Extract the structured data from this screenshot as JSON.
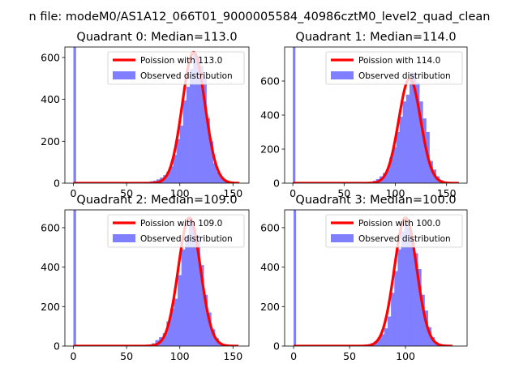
{
  "chart_data": {
    "suptitle": "n file: modeM0/AS1A12_066T01_9000005584_40986cztM0_level2_quad_clean",
    "type": "histogram+line",
    "panels": [
      {
        "title": "Quadrant 0: Median=113.0",
        "xlim": [
          -8,
          165
        ],
        "ylim": [
          0,
          650
        ],
        "xticks": [
          0,
          50,
          100,
          150
        ],
        "yticks": [
          0,
          200,
          400,
          600
        ],
        "legend": {
          "line_label": "Poission with 113.0",
          "bar_label": "Observed distribution",
          "position": "top-right"
        },
        "hist": {
          "zero_bin": {
            "left": 0,
            "width": 2.5,
            "count": 650
          },
          "bin_width": 3.125,
          "bins": [
            [
              62.5,
              3
            ],
            [
              65.6,
              4
            ],
            [
              68.7,
              6
            ],
            [
              71.9,
              9
            ],
            [
              75.0,
              12
            ],
            [
              78.1,
              18
            ],
            [
              81.2,
              26
            ],
            [
              84.4,
              38
            ],
            [
              87.5,
              55
            ],
            [
              90.6,
              80
            ],
            [
              93.7,
              135
            ],
            [
              96.9,
              210
            ],
            [
              100.0,
              275
            ],
            [
              103.1,
              395
            ],
            [
              106.2,
              460
            ],
            [
              109.4,
              545
            ],
            [
              112.5,
              620
            ],
            [
              115.6,
              600
            ],
            [
              118.7,
              560
            ],
            [
              121.9,
              505
            ],
            [
              125.0,
              310
            ],
            [
              128.1,
              200
            ],
            [
              131.2,
              95
            ],
            [
              134.4,
              55
            ],
            [
              137.5,
              28
            ],
            [
              140.6,
              12
            ],
            [
              143.7,
              6
            ]
          ]
        },
        "poisson": {
          "mu": 113.0,
          "peak": 625,
          "x_range": [
            0,
            156
          ]
        }
      },
      {
        "title": "Quadrant 1: Median=114.0",
        "xlim": [
          -8,
          170
        ],
        "ylim": [
          0,
          800
        ],
        "xticks": [
          0,
          50,
          100,
          150
        ],
        "yticks": [
          0,
          200,
          400,
          600
        ],
        "legend": {
          "line_label": "Poission with 114.0",
          "bar_label": "Observed distribution",
          "position": "top-right"
        },
        "hist": {
          "zero_bin": {
            "left": 0,
            "width": 2.5,
            "count": 800
          },
          "bin_width": 3.25,
          "bins": [
            [
              71.5,
              5
            ],
            [
              74.8,
              8
            ],
            [
              78.0,
              14
            ],
            [
              81.2,
              24
            ],
            [
              84.5,
              40
            ],
            [
              87.8,
              60
            ],
            [
              91.0,
              80
            ],
            [
              94.2,
              150
            ],
            [
              97.5,
              210
            ],
            [
              100.8,
              300
            ],
            [
              104.0,
              390
            ],
            [
              107.2,
              480
            ],
            [
              110.5,
              520
            ],
            [
              113.8,
              650
            ],
            [
              117.0,
              640
            ],
            [
              120.2,
              590
            ],
            [
              123.5,
              480
            ],
            [
              126.8,
              380
            ],
            [
              130.0,
              300
            ],
            [
              133.2,
              130
            ],
            [
              136.5,
              80
            ],
            [
              139.8,
              40
            ],
            [
              143.0,
              18
            ],
            [
              146.2,
              8
            ]
          ]
        },
        "poisson": {
          "mu": 114.0,
          "peak": 615,
          "x_range": [
            0,
            162
          ]
        }
      },
      {
        "title": "Quadrant 2: Median=109.0",
        "xlim": [
          -8,
          165
        ],
        "ylim": [
          0,
          690
        ],
        "xticks": [
          0,
          50,
          100,
          150
        ],
        "yticks": [
          0,
          200,
          400,
          600
        ],
        "legend": {
          "line_label": "Poission with 109.0",
          "bar_label": "Observed distribution",
          "position": "top-right"
        },
        "hist": {
          "zero_bin": {
            "left": 0,
            "width": 2.5,
            "count": 690
          },
          "bin_width": 3.5,
          "bins": [
            [
              66.5,
              4
            ],
            [
              70.0,
              8
            ],
            [
              73.5,
              14
            ],
            [
              77.0,
              30
            ],
            [
              80.5,
              45
            ],
            [
              84.0,
              65
            ],
            [
              87.5,
              125
            ],
            [
              91.0,
              190
            ],
            [
              94.5,
              240
            ],
            [
              98.0,
              360
            ],
            [
              101.5,
              490
            ],
            [
              105.0,
              560
            ],
            [
              108.5,
              650
            ],
            [
              112.0,
              600
            ],
            [
              115.5,
              560
            ],
            [
              119.0,
              410
            ],
            [
              122.5,
              260
            ],
            [
              126.0,
              170
            ],
            [
              129.5,
              85
            ],
            [
              133.0,
              40
            ],
            [
              136.5,
              15
            ],
            [
              140.0,
              6
            ]
          ]
        },
        "poisson": {
          "mu": 109.0,
          "peak": 650,
          "x_range": [
            0,
            155
          ]
        }
      },
      {
        "title": "Quadrant 3: Median=100.0",
        "xlim": [
          -8,
          155
        ],
        "ylim": [
          0,
          690
        ],
        "xticks": [
          0,
          50,
          100
        ],
        "yticks": [
          0,
          200,
          400,
          600
        ],
        "legend": {
          "line_label": "Poission with 100.0",
          "bar_label": "Observed distribution",
          "position": "top-right"
        },
        "hist": {
          "zero_bin": {
            "left": 0,
            "width": 2.2,
            "count": 690
          },
          "bin_width": 3.0,
          "bins": [
            [
              60.0,
              3
            ],
            [
              63.0,
              5
            ],
            [
              66.0,
              9
            ],
            [
              69.0,
              15
            ],
            [
              72.0,
              25
            ],
            [
              75.0,
              45
            ],
            [
              78.0,
              60
            ],
            [
              81.0,
              90
            ],
            [
              84.0,
              150
            ],
            [
              87.0,
              270
            ],
            [
              90.0,
              380
            ],
            [
              93.0,
              490
            ],
            [
              96.0,
              580
            ],
            [
              99.0,
              620
            ],
            [
              102.0,
              600
            ],
            [
              105.0,
              520
            ],
            [
              108.0,
              470
            ],
            [
              111.0,
              390
            ],
            [
              114.0,
              260
            ],
            [
              117.0,
              180
            ],
            [
              120.0,
              95
            ],
            [
              123.0,
              45
            ],
            [
              126.0,
              20
            ],
            [
              129.0,
              8
            ]
          ]
        },
        "poisson": {
          "mu": 100.0,
          "peak": 650,
          "x_range": [
            0,
            142
          ]
        }
      }
    ],
    "colors": {
      "bars": "#7f7fff",
      "line": "#ff0000",
      "zero_bar": "#7f7fff"
    }
  }
}
